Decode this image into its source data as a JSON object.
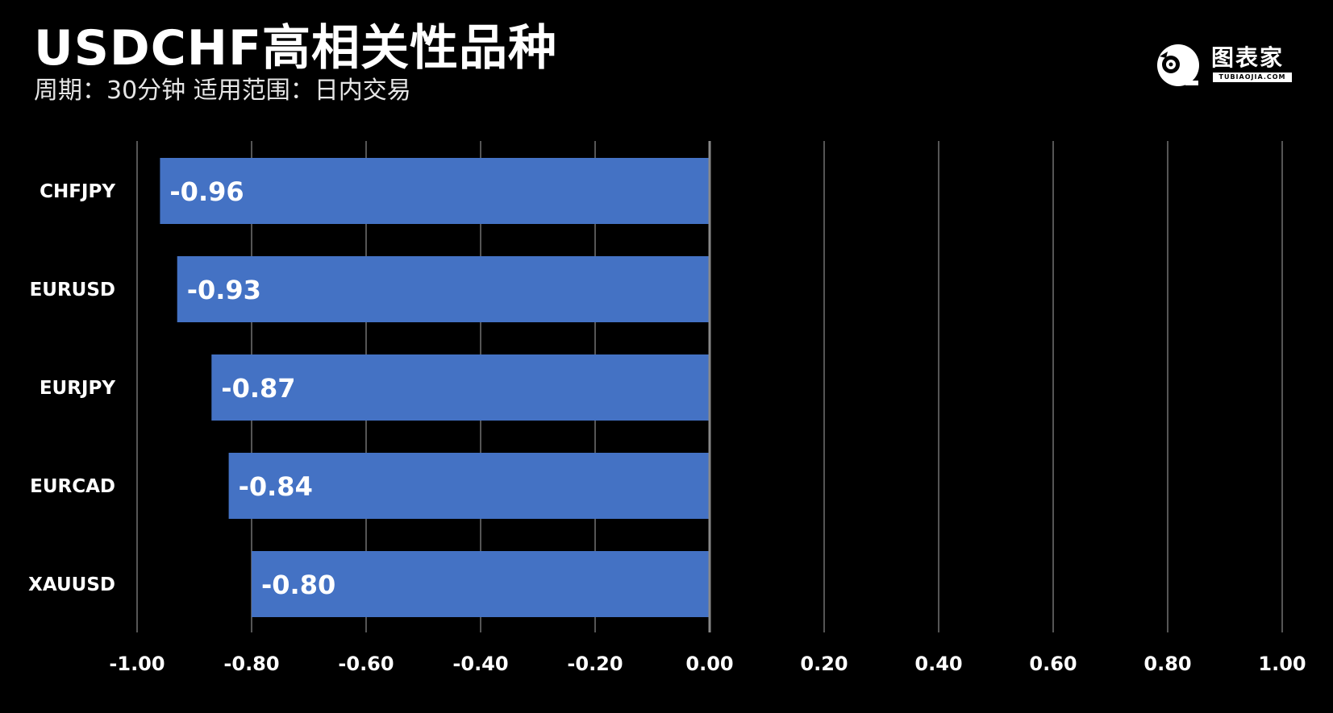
{
  "header": {
    "title": "USDCHF高相关性品种",
    "subtitle": "周期：30分钟  适用范围：日内交易"
  },
  "logo": {
    "name": "图表家",
    "site": "TUBIAOJIA.COM",
    "icon": "robot-head-icon"
  },
  "colors": {
    "background": "#000000",
    "bar": "#4472c4",
    "grid": "#555555",
    "zero_line": "#888888",
    "text": "#ffffff"
  },
  "chart_data": {
    "type": "bar",
    "orientation": "horizontal",
    "title": "USDCHF高相关性品种",
    "subtitle": "周期：30分钟  适用范围：日内交易",
    "xlabel": "",
    "ylabel": "",
    "categories": [
      "CHFJPY",
      "EURUSD",
      "EURJPY",
      "EURCAD",
      "XAUUSD"
    ],
    "values": [
      -0.96,
      -0.93,
      -0.87,
      -0.84,
      -0.8
    ],
    "data_labels": [
      "-0.96",
      "-0.93",
      "-0.87",
      "-0.84",
      "-0.80"
    ],
    "xlim": [
      -1.0,
      1.0
    ],
    "xticks": [
      "-1.00",
      "-0.80",
      "-0.60",
      "-0.40",
      "-0.20",
      "0.00",
      "0.20",
      "0.40",
      "0.60",
      "0.80",
      "1.00"
    ],
    "grid": true,
    "legend": "none"
  }
}
